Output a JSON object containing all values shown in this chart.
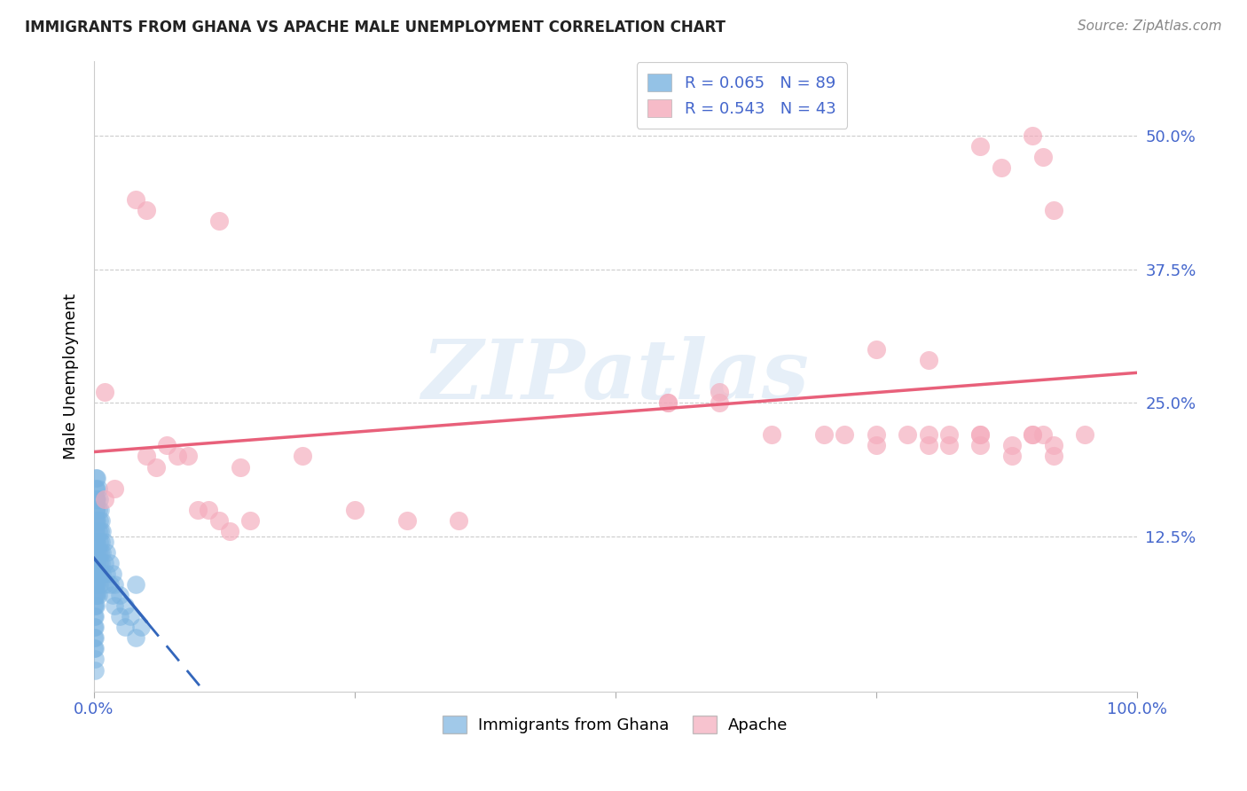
{
  "title": "IMMIGRANTS FROM GHANA VS APACHE MALE UNEMPLOYMENT CORRELATION CHART",
  "source": "Source: ZipAtlas.com",
  "ylabel": "Male Unemployment",
  "yticks": [
    "12.5%",
    "25.0%",
    "37.5%",
    "50.0%"
  ],
  "ytick_vals": [
    0.125,
    0.25,
    0.375,
    0.5
  ],
  "xlim": [
    0.0,
    1.0
  ],
  "ylim": [
    -0.02,
    0.57
  ],
  "blue_color": "#7ab3e0",
  "blue_line_color": "#3366bb",
  "pink_color": "#f4aabb",
  "pink_line_color": "#e8607a",
  "legend_text_color": "#4466cc",
  "watermark_zip": "ZIP",
  "watermark_atlas": "atlas",
  "R_blue": 0.065,
  "N_blue": 89,
  "R_pink": 0.543,
  "N_pink": 43,
  "blue_scatter_x": [
    0.0,
    0.0,
    0.0,
    0.0,
    0.0,
    0.0,
    0.0,
    0.0,
    0.0,
    0.0,
    0.002,
    0.002,
    0.002,
    0.002,
    0.002,
    0.002,
    0.002,
    0.002,
    0.002,
    0.002,
    0.003,
    0.003,
    0.003,
    0.003,
    0.003,
    0.003,
    0.003,
    0.003,
    0.004,
    0.004,
    0.004,
    0.004,
    0.004,
    0.004,
    0.005,
    0.005,
    0.005,
    0.005,
    0.005,
    0.006,
    0.006,
    0.006,
    0.006,
    0.007,
    0.007,
    0.007,
    0.008,
    0.008,
    0.008,
    0.01,
    0.01,
    0.01,
    0.012,
    0.012,
    0.015,
    0.015,
    0.018,
    0.018,
    0.02,
    0.02,
    0.025,
    0.025,
    0.03,
    0.03,
    0.035,
    0.04,
    0.04,
    0.045,
    0.001,
    0.001,
    0.001,
    0.001,
    0.001,
    0.001,
    0.001,
    0.001,
    0.001,
    0.001,
    0.001,
    0.001,
    0.001,
    0.001,
    0.001,
    0.002,
    0.002,
    0.002,
    0.002
  ],
  "blue_scatter_y": [
    0.08,
    0.07,
    0.06,
    0.05,
    0.04,
    0.09,
    0.1,
    0.11,
    0.03,
    0.02,
    0.17,
    0.16,
    0.15,
    0.14,
    0.13,
    0.12,
    0.09,
    0.08,
    0.07,
    0.06,
    0.18,
    0.16,
    0.14,
    0.12,
    0.11,
    0.1,
    0.08,
    0.07,
    0.17,
    0.15,
    0.13,
    0.11,
    0.09,
    0.07,
    0.16,
    0.14,
    0.12,
    0.1,
    0.08,
    0.15,
    0.13,
    0.11,
    0.09,
    0.14,
    0.12,
    0.1,
    0.13,
    0.11,
    0.09,
    0.12,
    0.1,
    0.08,
    0.11,
    0.09,
    0.1,
    0.08,
    0.09,
    0.07,
    0.08,
    0.06,
    0.07,
    0.05,
    0.06,
    0.04,
    0.05,
    0.08,
    0.03,
    0.04,
    0.09,
    0.08,
    0.07,
    0.06,
    0.05,
    0.1,
    0.11,
    0.12,
    0.13,
    0.14,
    0.04,
    0.03,
    0.02,
    0.01,
    0.0,
    0.15,
    0.16,
    0.17,
    0.18
  ],
  "pink_scatter_x": [
    0.01,
    0.01,
    0.02,
    0.05,
    0.06,
    0.07,
    0.08,
    0.09,
    0.1,
    0.11,
    0.12,
    0.13,
    0.14,
    0.15,
    0.2,
    0.25,
    0.3,
    0.35,
    0.55,
    0.6,
    0.65,
    0.7,
    0.72,
    0.75,
    0.75,
    0.78,
    0.8,
    0.8,
    0.82,
    0.82,
    0.85,
    0.85,
    0.88,
    0.88,
    0.9,
    0.91,
    0.92,
    0.92,
    0.95,
    0.75,
    0.8,
    0.85,
    0.9
  ],
  "pink_scatter_y": [
    0.26,
    0.16,
    0.17,
    0.2,
    0.19,
    0.21,
    0.2,
    0.2,
    0.15,
    0.15,
    0.14,
    0.13,
    0.19,
    0.14,
    0.2,
    0.15,
    0.14,
    0.14,
    0.25,
    0.26,
    0.22,
    0.22,
    0.22,
    0.21,
    0.22,
    0.22,
    0.22,
    0.21,
    0.22,
    0.21,
    0.22,
    0.21,
    0.2,
    0.21,
    0.22,
    0.22,
    0.21,
    0.2,
    0.22,
    0.3,
    0.29,
    0.22,
    0.22
  ],
  "pink_outlier_x": [
    0.04,
    0.05,
    0.12,
    0.55,
    0.6,
    0.85,
    0.87,
    0.9,
    0.91,
    0.92
  ],
  "pink_outlier_y": [
    0.44,
    0.43,
    0.42,
    0.25,
    0.25,
    0.49,
    0.47,
    0.5,
    0.48,
    0.43
  ]
}
